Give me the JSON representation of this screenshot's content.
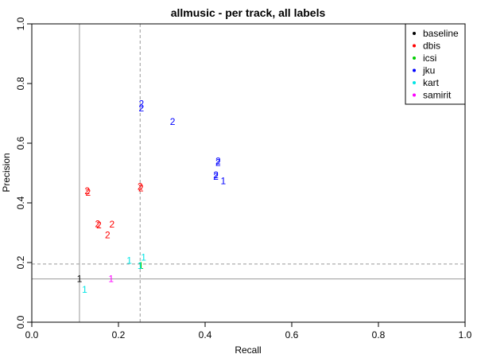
{
  "chart_data": {
    "type": "scatter",
    "title": "allmusic - per track, all labels",
    "xlabel": "Recall",
    "ylabel": "Precision",
    "xlim": [
      0,
      1
    ],
    "ylim": [
      0,
      1
    ],
    "x_ticks": [
      "0.0",
      "0.2",
      "0.4",
      "0.6",
      "0.8",
      "1.0"
    ],
    "y_ticks": [
      "0.0",
      "0.2",
      "0.4",
      "0.6",
      "0.8",
      "1.0"
    ],
    "grid": false,
    "legend_position": "top-right",
    "reference_lines": [
      {
        "orientation": "vertical",
        "value": 0.11,
        "style": "solid",
        "color": "#999999"
      },
      {
        "orientation": "vertical",
        "value": 0.25,
        "style": "dashed",
        "color": "#999999"
      },
      {
        "orientation": "horizontal",
        "value": 0.145,
        "style": "solid",
        "color": "#999999"
      },
      {
        "orientation": "horizontal",
        "value": 0.195,
        "style": "dashed",
        "color": "#999999"
      }
    ],
    "series": [
      {
        "name": "baseline",
        "color": "#000000",
        "points": [
          {
            "x": 0.11,
            "y": 0.145,
            "label": "1"
          }
        ]
      },
      {
        "name": "dbis",
        "color": "#ff0000",
        "points": [
          {
            "x": 0.128,
            "y": 0.44,
            "label": "2"
          },
          {
            "x": 0.13,
            "y": 0.435,
            "label": "2"
          },
          {
            "x": 0.25,
            "y": 0.455,
            "label": "2"
          },
          {
            "x": 0.252,
            "y": 0.45,
            "label": "2"
          },
          {
            "x": 0.152,
            "y": 0.33,
            "label": "2"
          },
          {
            "x": 0.155,
            "y": 0.325,
            "label": "2"
          },
          {
            "x": 0.185,
            "y": 0.328,
            "label": "2"
          },
          {
            "x": 0.175,
            "y": 0.292,
            "label": "2"
          }
        ]
      },
      {
        "name": "icsi",
        "color": "#00cd00",
        "points": [
          {
            "x": 0.252,
            "y": 0.19,
            "label": "1"
          }
        ]
      },
      {
        "name": "jku",
        "color": "#0000ff",
        "points": [
          {
            "x": 0.253,
            "y": 0.732,
            "label": "2"
          },
          {
            "x": 0.253,
            "y": 0.717,
            "label": "2"
          },
          {
            "x": 0.325,
            "y": 0.672,
            "label": "2"
          },
          {
            "x": 0.43,
            "y": 0.54,
            "label": "2"
          },
          {
            "x": 0.43,
            "y": 0.535,
            "label": "2"
          },
          {
            "x": 0.425,
            "y": 0.493,
            "label": "2"
          },
          {
            "x": 0.425,
            "y": 0.488,
            "label": "2"
          },
          {
            "x": 0.442,
            "y": 0.474,
            "label": "1"
          }
        ]
      },
      {
        "name": "kart",
        "color": "#00e5e5",
        "points": [
          {
            "x": 0.225,
            "y": 0.207,
            "label": "1"
          },
          {
            "x": 0.258,
            "y": 0.217,
            "label": "1"
          },
          {
            "x": 0.25,
            "y": 0.19,
            "label": "1"
          },
          {
            "x": 0.122,
            "y": 0.11,
            "label": "1"
          }
        ]
      },
      {
        "name": "samirit",
        "color": "#ff00ff",
        "points": [
          {
            "x": 0.183,
            "y": 0.145,
            "label": "1"
          }
        ]
      }
    ]
  }
}
